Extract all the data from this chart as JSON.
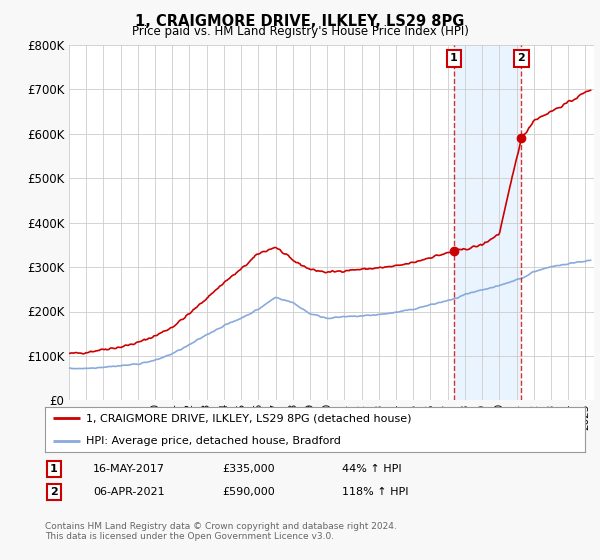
{
  "title": "1, CRAIGMORE DRIVE, ILKLEY, LS29 8PG",
  "subtitle": "Price paid vs. HM Land Registry's House Price Index (HPI)",
  "legend_line1": "1, CRAIGMORE DRIVE, ILKLEY, LS29 8PG (detached house)",
  "legend_line2": "HPI: Average price, detached house, Bradford",
  "sale1_label": "1",
  "sale1_date": "16-MAY-2017",
  "sale1_price": "£335,000",
  "sale1_hpi": "44% ↑ HPI",
  "sale1_year": 2017.37,
  "sale1_value": 335000,
  "sale2_label": "2",
  "sale2_date": "06-APR-2021",
  "sale2_price": "£590,000",
  "sale2_hpi": "118% ↑ HPI",
  "sale2_year": 2021.27,
  "sale2_value": 590000,
  "footer": "Contains HM Land Registry data © Crown copyright and database right 2024.\nThis data is licensed under the Open Government Licence v3.0.",
  "red_color": "#cc0000",
  "blue_color": "#88aadd",
  "shade_color": "#ddeeff",
  "ylim": [
    0,
    800000
  ],
  "xlim_start": 1995.0,
  "xlim_end": 2025.5,
  "background_chart": "#ffffff",
  "background_fig": "#f8f8f8",
  "grid_color": "#cccccc",
  "key_t": [
    1995,
    1996,
    1997,
    1998,
    1999,
    2000,
    2001,
    2002,
    2003,
    2004,
    2005,
    2006,
    2007,
    2008,
    2009,
    2010,
    2011,
    2012,
    2013,
    2014,
    2015,
    2016,
    2017.37,
    2018,
    2019,
    2020,
    2021.27,
    2021.5,
    2022,
    2023,
    2024,
    2025.3
  ],
  "key_red": [
    105000,
    108000,
    115000,
    120000,
    130000,
    145000,
    165000,
    195000,
    230000,
    265000,
    295000,
    330000,
    345000,
    315000,
    295000,
    288000,
    292000,
    295000,
    298000,
    302000,
    310000,
    322000,
    335000,
    340000,
    350000,
    375000,
    590000,
    600000,
    630000,
    650000,
    670000,
    700000
  ],
  "key_blue": [
    72000,
    72000,
    75000,
    78000,
    82000,
    90000,
    105000,
    125000,
    148000,
    168000,
    185000,
    205000,
    232000,
    220000,
    195000,
    185000,
    188000,
    190000,
    193000,
    198000,
    205000,
    215000,
    228000,
    238000,
    248000,
    258000,
    275000,
    278000,
    290000,
    300000,
    308000,
    315000
  ]
}
